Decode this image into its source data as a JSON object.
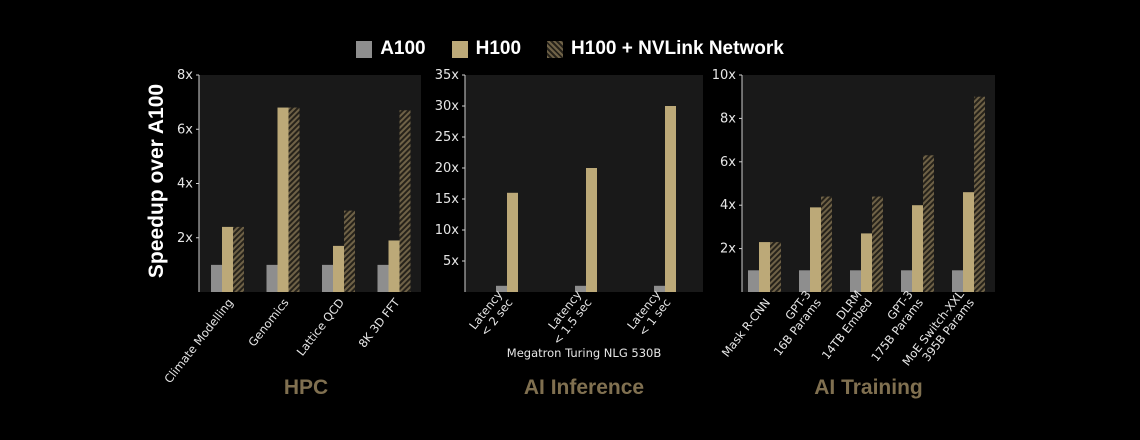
{
  "legend": [
    {
      "label": "A100",
      "color": "#8e8e8e"
    },
    {
      "label": "H100",
      "color": "#bca978"
    },
    {
      "label": "H100 + NVLink Network",
      "color": "#6f6247"
    }
  ],
  "ylabel": "Speedup over A100",
  "chart_data": [
    {
      "type": "bar",
      "title": "HPC",
      "subtitle": "",
      "categories": [
        "Climate Modelling",
        "Genomics",
        "Lattice QCD",
        "8K 3D FFT"
      ],
      "series": [
        {
          "name": "A100",
          "values": [
            1,
            1,
            1,
            1
          ]
        },
        {
          "name": "H100",
          "values": [
            2.4,
            6.8,
            1.7,
            1.9
          ]
        },
        {
          "name": "H100 + NVLink Network",
          "values": [
            2.4,
            6.8,
            3.0,
            6.7
          ]
        }
      ],
      "ylim": [
        0,
        8
      ],
      "yticks": [
        "2x",
        "4x",
        "6x",
        "8x"
      ],
      "ytick_values": [
        2,
        4,
        6,
        8
      ]
    },
    {
      "type": "bar",
      "title": "AI Inference",
      "subtitle": "Megatron Turing NLG 530B",
      "categories": [
        "Latency\n< 2 sec",
        "Latency\n< 1.5 sec",
        "Latency\n< 1 sec"
      ],
      "series": [
        {
          "name": "A100",
          "values": [
            1,
            1,
            1
          ]
        },
        {
          "name": "H100",
          "values": [
            16,
            20,
            30
          ]
        }
      ],
      "ylim": [
        0,
        35
      ],
      "yticks": [
        "5x",
        "10x",
        "15x",
        "20x",
        "25x",
        "30x",
        "35x"
      ],
      "ytick_values": [
        5,
        10,
        15,
        20,
        25,
        30,
        35
      ]
    },
    {
      "type": "bar",
      "title": "AI Training",
      "subtitle": "",
      "categories": [
        "Mask R-CNN",
        "GPT-3\n16B Params",
        "DLRM\n14TB Embed",
        "GPT-3\n175B Params",
        "MoE Switch-XXL\n395B Params"
      ],
      "series": [
        {
          "name": "A100",
          "values": [
            1,
            1,
            1,
            1,
            1
          ]
        },
        {
          "name": "H100",
          "values": [
            2.3,
            3.9,
            2.7,
            4.0,
            4.6
          ]
        },
        {
          "name": "H100 + NVLink Network",
          "values": [
            2.3,
            4.4,
            4.4,
            6.3,
            9.0
          ]
        }
      ],
      "ylim": [
        0,
        10
      ],
      "yticks": [
        "2x",
        "4x",
        "6x",
        "8x",
        "10x"
      ],
      "ytick_values": [
        2,
        4,
        6,
        8,
        10
      ]
    }
  ]
}
